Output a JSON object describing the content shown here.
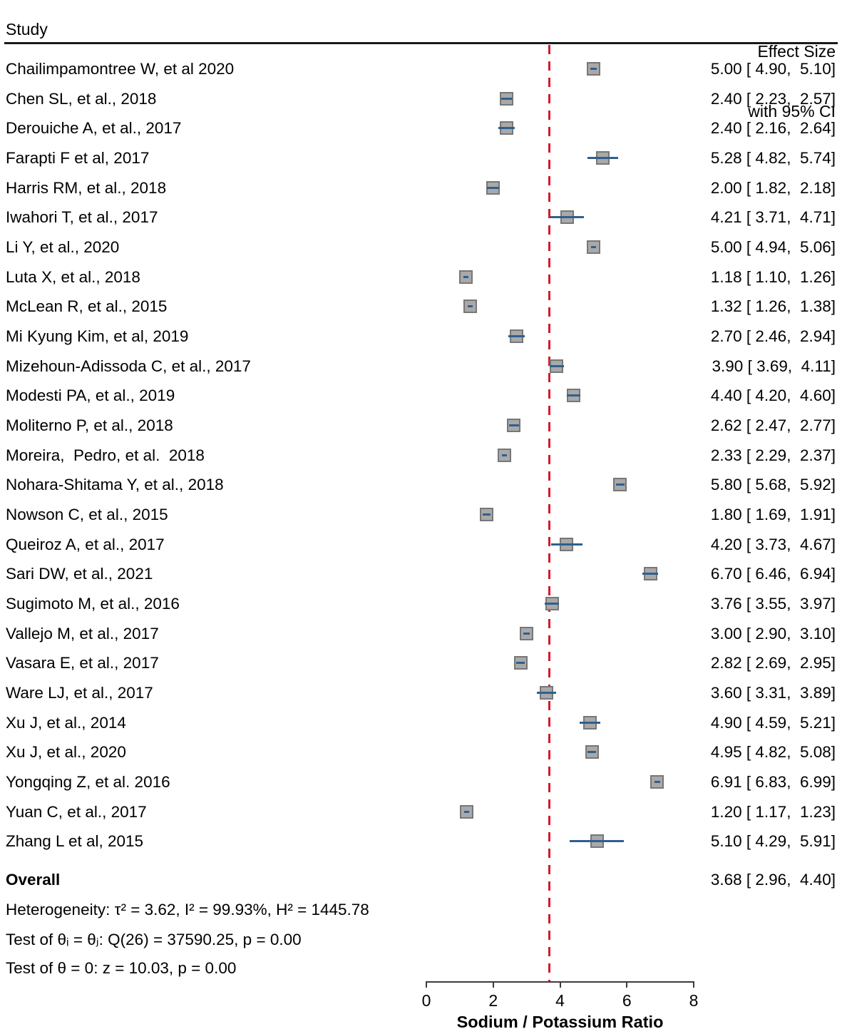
{
  "header": {
    "study_col": "Study",
    "effect_col_line1": "Effect Size",
    "effect_col_line2": "with 95% CI"
  },
  "chart_data": {
    "type": "forest",
    "xlabel": "Sodium / Potassium Ratio",
    "xlim": [
      0,
      8
    ],
    "x_ticks": [
      0,
      2,
      4,
      6,
      8
    ],
    "reference_line": 3.68,
    "studies": [
      {
        "label": "Chailimpamontree W, et al 2020",
        "est": 5.0,
        "lo": 4.9,
        "hi": 5.1
      },
      {
        "label": "Chen SL, et al., 2018",
        "est": 2.4,
        "lo": 2.23,
        "hi": 2.57
      },
      {
        "label": "Derouiche A, et al., 2017",
        "est": 2.4,
        "lo": 2.16,
        "hi": 2.64
      },
      {
        "label": "Farapti F et al, 2017",
        "est": 5.28,
        "lo": 4.82,
        "hi": 5.74
      },
      {
        "label": "Harris RM, et al., 2018",
        "est": 2.0,
        "lo": 1.82,
        "hi": 2.18
      },
      {
        "label": "Iwahori T, et al., 2017",
        "est": 4.21,
        "lo": 3.71,
        "hi": 4.71
      },
      {
        "label": "Li Y, et al., 2020",
        "est": 5.0,
        "lo": 4.94,
        "hi": 5.06
      },
      {
        "label": "Luta X, et al., 2018",
        "est": 1.18,
        "lo": 1.1,
        "hi": 1.26
      },
      {
        "label": "McLean R, et al., 2015",
        "est": 1.32,
        "lo": 1.26,
        "hi": 1.38
      },
      {
        "label": "Mi Kyung Kim, et al, 2019",
        "est": 2.7,
        "lo": 2.46,
        "hi": 2.94
      },
      {
        "label": "Mizehoun-Adissoda C, et al., 2017",
        "est": 3.9,
        "lo": 3.69,
        "hi": 4.11
      },
      {
        "label": "Modesti PA, et al., 2019",
        "est": 4.4,
        "lo": 4.2,
        "hi": 4.6
      },
      {
        "label": "Moliterno P, et al., 2018",
        "est": 2.62,
        "lo": 2.47,
        "hi": 2.77
      },
      {
        "label": "Moreira,  Pedro, et al.  2018",
        "est": 2.33,
        "lo": 2.29,
        "hi": 2.37
      },
      {
        "label": "Nohara-Shitama Y, et al., 2018",
        "est": 5.8,
        "lo": 5.68,
        "hi": 5.92
      },
      {
        "label": "Nowson C, et al., 2015",
        "est": 1.8,
        "lo": 1.69,
        "hi": 1.91
      },
      {
        "label": "Queiroz A, et al., 2017",
        "est": 4.2,
        "lo": 3.73,
        "hi": 4.67
      },
      {
        "label": "Sari DW, et al., 2021",
        "est": 6.7,
        "lo": 6.46,
        "hi": 6.94
      },
      {
        "label": "Sugimoto M, et al., 2016",
        "est": 3.76,
        "lo": 3.55,
        "hi": 3.97
      },
      {
        "label": "Vallejo M, et al., 2017",
        "est": 3.0,
        "lo": 2.9,
        "hi": 3.1
      },
      {
        "label": "Vasara E, et al., 2017",
        "est": 2.82,
        "lo": 2.69,
        "hi": 2.95
      },
      {
        "label": "Ware LJ, et al., 2017",
        "est": 3.6,
        "lo": 3.31,
        "hi": 3.89
      },
      {
        "label": "Xu J, et al., 2014",
        "est": 4.9,
        "lo": 4.59,
        "hi": 5.21
      },
      {
        "label": "Xu J, et al., 2020",
        "est": 4.95,
        "lo": 4.82,
        "hi": 5.08
      },
      {
        "label": "Yongqing Z, et al. 2016",
        "est": 6.91,
        "lo": 6.83,
        "hi": 6.99
      },
      {
        "label": "Yuan C, et al., 2017",
        "est": 1.2,
        "lo": 1.17,
        "hi": 1.23
      },
      {
        "label": "Zhang L et al, 2015",
        "est": 5.1,
        "lo": 4.29,
        "hi": 5.91
      }
    ],
    "overall": {
      "label": "Overall",
      "est": 3.68,
      "lo": 2.96,
      "hi": 4.4
    },
    "heterogeneity": "Heterogeneity: τ² = 3.62, I² = 99.93%, H² = 1445.78",
    "test_theta_ij": "Test of θᵢ = θⱼ: Q(26) = 37590.25, p = 0.00",
    "test_theta_zero": "Test of θ = 0: z = 10.03, p = 0.00"
  },
  "colors": {
    "marker_fill": "#a9a9a9",
    "marker_border": "#777777",
    "ci_line": "#2e608f",
    "reference": "#d7182d",
    "axis": "#3c3c3c",
    "text": "#000000"
  }
}
